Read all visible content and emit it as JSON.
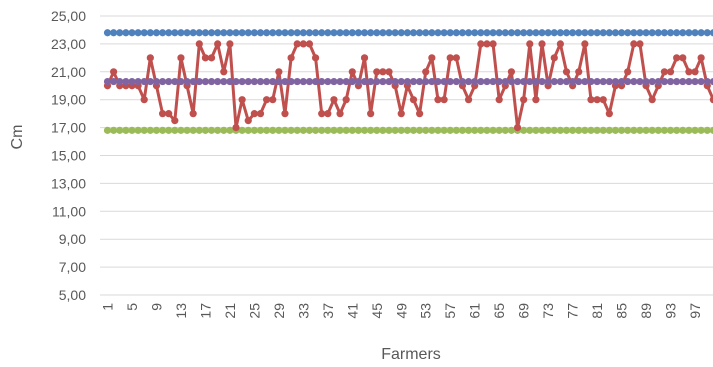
{
  "chart_data": {
    "type": "line",
    "title": "",
    "xlabel": "Farmers",
    "ylabel": "Cm",
    "ylim": [
      5,
      25
    ],
    "y_ticks": [
      "5,00",
      "7,00",
      "9,00",
      "11,00",
      "13,00",
      "15,00",
      "17,00",
      "19,00",
      "21,00",
      "23,00",
      "25,00"
    ],
    "x_ticks": [
      "1",
      "5",
      "9",
      "13",
      "17",
      "21",
      "25",
      "29",
      "33",
      "37",
      "41",
      "45",
      "49",
      "53",
      "57",
      "61",
      "65",
      "69",
      "73",
      "77",
      "81",
      "85",
      "89",
      "93",
      "97"
    ],
    "x": [
      1,
      2,
      3,
      4,
      5,
      6,
      7,
      8,
      9,
      10,
      11,
      12,
      13,
      14,
      15,
      16,
      17,
      18,
      19,
      20,
      21,
      22,
      23,
      24,
      25,
      26,
      27,
      28,
      29,
      30,
      31,
      32,
      33,
      34,
      35,
      36,
      37,
      38,
      39,
      40,
      41,
      42,
      43,
      44,
      45,
      46,
      47,
      48,
      49,
      50,
      51,
      52,
      53,
      54,
      55,
      56,
      57,
      58,
      59,
      60,
      61,
      62,
      63,
      64,
      65,
      66,
      67,
      68,
      69,
      70,
      71,
      72,
      73,
      74,
      75,
      76,
      77,
      78,
      79,
      80,
      81,
      82,
      83,
      84,
      85,
      86,
      87,
      88,
      89,
      90,
      91,
      92,
      93,
      94,
      95,
      96,
      97,
      98,
      99,
      100
    ],
    "series": [
      {
        "values": [
          23.8,
          23.8,
          23.8,
          23.8,
          23.8,
          23.8,
          23.8,
          23.8,
          23.8,
          23.8,
          23.8,
          23.8,
          23.8,
          23.8,
          23.8,
          23.8,
          23.8,
          23.8,
          23.8,
          23.8,
          23.8,
          23.8,
          23.8,
          23.8,
          23.8,
          23.8,
          23.8,
          23.8,
          23.8,
          23.8,
          23.8,
          23.8,
          23.8,
          23.8,
          23.8,
          23.8,
          23.8,
          23.8,
          23.8,
          23.8,
          23.8,
          23.8,
          23.8,
          23.8,
          23.8,
          23.8,
          23.8,
          23.8,
          23.8,
          23.8,
          23.8,
          23.8,
          23.8,
          23.8,
          23.8,
          23.8,
          23.8,
          23.8,
          23.8,
          23.8,
          23.8,
          23.8,
          23.8,
          23.8,
          23.8,
          23.8,
          23.8,
          23.8,
          23.8,
          23.8,
          23.8,
          23.8,
          23.8,
          23.8,
          23.8,
          23.8,
          23.8,
          23.8,
          23.8,
          23.8,
          23.8,
          23.8,
          23.8,
          23.8,
          23.8,
          23.8,
          23.8,
          23.8,
          23.8,
          23.8,
          23.8,
          23.8,
          23.8,
          23.8,
          23.8,
          23.8,
          23.8,
          23.8,
          23.8,
          23.8
        ],
        "color": "#4f81bd"
      },
      {
        "values": [
          16.8,
          16.8,
          16.8,
          16.8,
          16.8,
          16.8,
          16.8,
          16.8,
          16.8,
          16.8,
          16.8,
          16.8,
          16.8,
          16.8,
          16.8,
          16.8,
          16.8,
          16.8,
          16.8,
          16.8,
          16.8,
          16.8,
          16.8,
          16.8,
          16.8,
          16.8,
          16.8,
          16.8,
          16.8,
          16.8,
          16.8,
          16.8,
          16.8,
          16.8,
          16.8,
          16.8,
          16.8,
          16.8,
          16.8,
          16.8,
          16.8,
          16.8,
          16.8,
          16.8,
          16.8,
          16.8,
          16.8,
          16.8,
          16.8,
          16.8,
          16.8,
          16.8,
          16.8,
          16.8,
          16.8,
          16.8,
          16.8,
          16.8,
          16.8,
          16.8,
          16.8,
          16.8,
          16.8,
          16.8,
          16.8,
          16.8,
          16.8,
          16.8,
          16.8,
          16.8,
          16.8,
          16.8,
          16.8,
          16.8,
          16.8,
          16.8,
          16.8,
          16.8,
          16.8,
          16.8,
          16.8,
          16.8,
          16.8,
          16.8,
          16.8,
          16.8,
          16.8,
          16.8,
          16.8,
          16.8,
          16.8,
          16.8,
          16.8,
          16.8,
          16.8,
          16.8,
          16.8,
          16.8,
          16.8,
          16.8
        ],
        "color": "#9bbb59"
      },
      {
        "values": [
          20.0,
          21.0,
          20.0,
          20.0,
          20.0,
          20.0,
          19.0,
          22.0,
          20.0,
          18.0,
          18.0,
          17.5,
          22.0,
          20.0,
          18.0,
          23.0,
          22.0,
          22.0,
          23.0,
          21.0,
          23.0,
          17.0,
          19.0,
          17.5,
          18.0,
          18.0,
          19.0,
          19.0,
          21.0,
          18.0,
          22.0,
          23.0,
          23.0,
          23.0,
          22.0,
          18.0,
          18.0,
          19.0,
          18.0,
          19.0,
          21.0,
          20.0,
          22.0,
          18.0,
          21.0,
          21.0,
          21.0,
          20.0,
          18.0,
          20.0,
          19.0,
          18.0,
          21.0,
          22.0,
          19.0,
          19.0,
          22.0,
          22.0,
          20.0,
          19.0,
          20.0,
          23.0,
          23.0,
          23.0,
          19.0,
          20.0,
          21.0,
          17.0,
          19.0,
          23.0,
          19.0,
          23.0,
          20.0,
          22.0,
          23.0,
          21.0,
          20.0,
          21.0,
          23.0,
          19.0,
          19.0,
          19.0,
          18.0,
          20.0,
          20.0,
          21.0,
          23.0,
          23.0,
          20.0,
          19.0,
          20.0,
          21.0,
          21.0,
          22.0,
          22.0,
          21.0,
          21.0,
          22.0,
          20.0,
          19.0
        ],
        "color": "#c0504d"
      },
      {
        "values": [
          20.3,
          20.3,
          20.3,
          20.3,
          20.3,
          20.3,
          20.3,
          20.3,
          20.3,
          20.3,
          20.3,
          20.3,
          20.3,
          20.3,
          20.3,
          20.3,
          20.3,
          20.3,
          20.3,
          20.3,
          20.3,
          20.3,
          20.3,
          20.3,
          20.3,
          20.3,
          20.3,
          20.3,
          20.3,
          20.3,
          20.3,
          20.3,
          20.3,
          20.3,
          20.3,
          20.3,
          20.3,
          20.3,
          20.3,
          20.3,
          20.3,
          20.3,
          20.3,
          20.3,
          20.3,
          20.3,
          20.3,
          20.3,
          20.3,
          20.3,
          20.3,
          20.3,
          20.3,
          20.3,
          20.3,
          20.3,
          20.3,
          20.3,
          20.3,
          20.3,
          20.3,
          20.3,
          20.3,
          20.3,
          20.3,
          20.3,
          20.3,
          20.3,
          20.3,
          20.3,
          20.3,
          20.3,
          20.3,
          20.3,
          20.3,
          20.3,
          20.3,
          20.3,
          20.3,
          20.3,
          20.3,
          20.3,
          20.3,
          20.3,
          20.3,
          20.3,
          20.3,
          20.3,
          20.3,
          20.3,
          20.3,
          20.3,
          20.3,
          20.3,
          20.3,
          20.3,
          20.3,
          20.3,
          20.3,
          20.3
        ],
        "color": "#8064a2"
      }
    ],
    "grid": true,
    "legend": "none",
    "gridline_color": "#d9d9d9",
    "text_color": "#595959"
  }
}
